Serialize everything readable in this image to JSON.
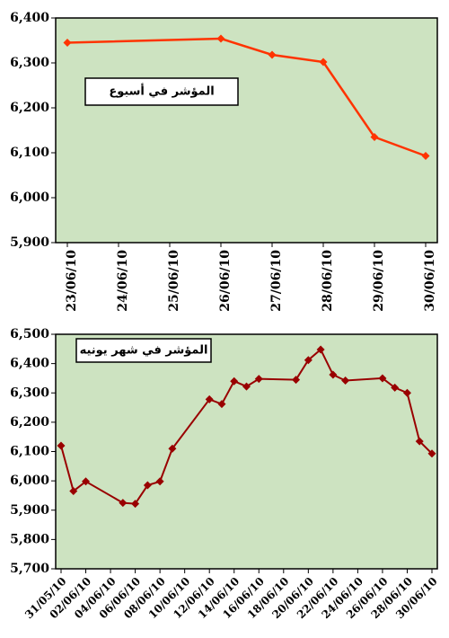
{
  "chart_data": [
    {
      "type": "line",
      "title": "المؤشر في أسبوع",
      "ylim": [
        5900,
        6400
      ],
      "yticks": [
        {
          "value": 5900,
          "label": "5,900"
        },
        {
          "value": 6000,
          "label": "6,000"
        },
        {
          "value": 6100,
          "label": "6,100"
        },
        {
          "value": 6200,
          "label": "6,200"
        },
        {
          "value": 6300,
          "label": "6,300"
        },
        {
          "value": 6400,
          "label": "6,400"
        }
      ],
      "xticks": [
        "23/06/10",
        "24/06/10",
        "25/06/10",
        "26/06/10",
        "27/06/10",
        "28/06/10",
        "29/06/10",
        "30/06/10"
      ],
      "x": [
        "23/06/10",
        "26/06/10",
        "27/06/10",
        "28/06/10",
        "29/06/10",
        "30/06/10"
      ],
      "series": [
        {
          "color": "#ff3300",
          "values": [
            6345,
            6354,
            6318,
            6302,
            6135,
            6093
          ]
        }
      ]
    },
    {
      "type": "line",
      "title": "المؤشر في شهر يونيه",
      "ylim": [
        5700,
        6500
      ],
      "yticks": [
        {
          "value": 5700,
          "label": "5,700"
        },
        {
          "value": 5800,
          "label": "5,800"
        },
        {
          "value": 5900,
          "label": "5,900"
        },
        {
          "value": 6000,
          "label": "6,000"
        },
        {
          "value": 6100,
          "label": "6,100"
        },
        {
          "value": 6200,
          "label": "6,200"
        },
        {
          "value": 6300,
          "label": "6,300"
        },
        {
          "value": 6400,
          "label": "6,400"
        },
        {
          "value": 6500,
          "label": "6,500"
        }
      ],
      "xticks": [
        "31/05/10",
        "02/06/10",
        "04/06/10",
        "06/06/10",
        "08/06/10",
        "10/06/10",
        "12/06/10",
        "14/06/10",
        "16/06/10",
        "18/06/10",
        "20/06/10",
        "22/06/10",
        "24/06/10",
        "26/06/10",
        "28/06/10",
        "30/06/10"
      ],
      "x": [
        "31/05/10",
        "01/06/10",
        "02/06/10",
        "05/06/10",
        "06/06/10",
        "07/06/10",
        "08/06/10",
        "09/06/10",
        "12/06/10",
        "13/06/10",
        "14/06/10",
        "15/06/10",
        "16/06/10",
        "19/06/10",
        "20/06/10",
        "21/06/10",
        "22/06/10",
        "23/06/10",
        "26/06/10",
        "27/06/10",
        "28/06/10",
        "29/06/10",
        "30/06/10"
      ],
      "series": [
        {
          "color": "#990000",
          "values": [
            6120,
            5965,
            5998,
            5925,
            5922,
            5985,
            5998,
            6110,
            6278,
            6262,
            6340,
            6322,
            6348,
            6345,
            6412,
            6448,
            6362,
            6342,
            6350,
            6318,
            6300,
            6135,
            6093
          ]
        }
      ]
    }
  ]
}
